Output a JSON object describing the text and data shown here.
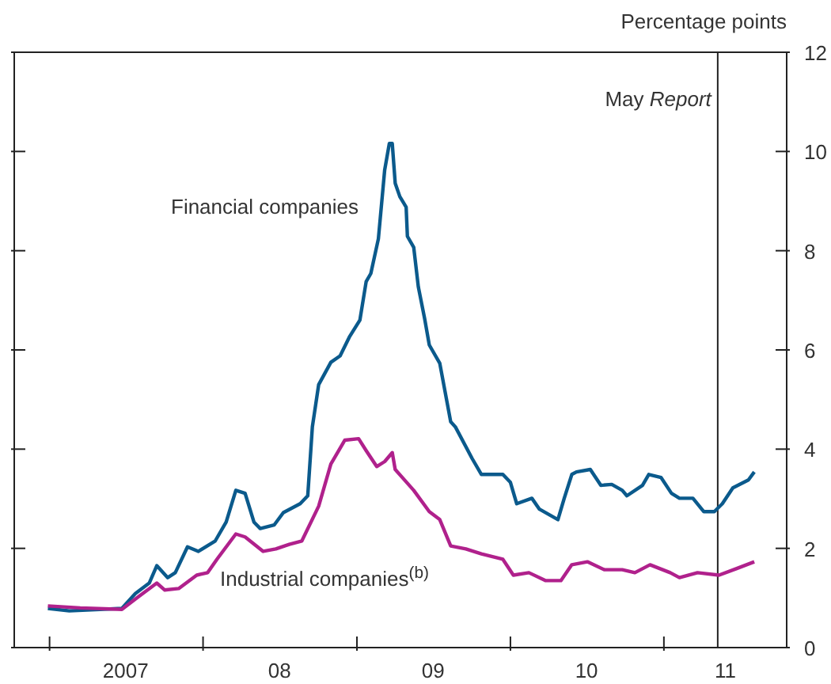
{
  "chart_data": {
    "type": "line",
    "ylabel": "Percentage points",
    "legend": false,
    "marker": "none",
    "line_style": "solid",
    "grid": false,
    "tick_labels": "xy",
    "xlim": [
      "2006-10-09",
      "2011-10-20"
    ],
    "xticks": [
      {
        "value": "2007-01-01",
        "label": null
      },
      {
        "value": "2007-07-01",
        "label": "2007"
      },
      {
        "value": "2008-01-01",
        "label": null
      },
      {
        "value": "2008-07-01",
        "label": "08"
      },
      {
        "value": "2009-01-01",
        "label": null
      },
      {
        "value": "2009-07-01",
        "label": "09"
      },
      {
        "value": "2010-01-01",
        "label": null
      },
      {
        "value": "2010-07-01",
        "label": "10"
      },
      {
        "value": "2011-01-01",
        "label": null
      },
      {
        "value": "2011-05-27",
        "label": "11"
      }
    ],
    "ylim": [
      0,
      12
    ],
    "yticks": [
      0,
      2,
      4,
      6,
      8,
      10,
      12
    ],
    "ref_lines": [
      {
        "axis": "x",
        "value": "2011-05-09",
        "label": "May Report",
        "color": "#222222"
      }
    ],
    "series": [
      {
        "name": "Financial companies",
        "color": "#0b5a8c",
        "x": [
          "2006-12-28",
          "2007-02-17",
          "2007-06-22",
          "2007-07-24",
          "2007-08-26",
          "2007-09-13",
          "2007-10-09",
          "2007-10-27",
          "2007-11-25",
          "2007-12-21",
          "2008-01-30",
          "2008-02-25",
          "2008-03-19",
          "2008-04-10",
          "2008-05-01",
          "2008-05-16",
          "2008-06-18",
          "2008-07-10",
          "2008-08-19",
          "2008-09-06",
          "2008-09-17",
          "2008-10-02",
          "2008-10-31",
          "2008-11-22",
          "2008-12-14",
          "2009-01-08",
          "2009-01-23",
          "2009-02-03",
          "2009-02-21",
          "2009-03-08",
          "2009-03-19",
          "2009-03-26",
          "2009-04-02",
          "2009-04-13",
          "2009-04-28",
          "2009-05-01",
          "2009-05-16",
          "2009-05-27",
          "2009-06-11",
          "2009-06-22",
          "2009-07-17",
          "2009-08-12",
          "2009-08-23",
          "2009-10-02",
          "2009-10-24",
          "2009-11-26",
          "2009-12-14",
          "2010-01-01",
          "2010-01-16",
          "2010-02-21",
          "2010-03-11",
          "2010-04-24",
          "2010-05-09",
          "2010-05-27",
          "2010-06-07",
          "2010-07-10",
          "2010-08-04",
          "2010-08-30",
          "2010-09-24",
          "2010-10-05",
          "2010-11-11",
          "2010-11-26",
          "2010-12-25",
          "2011-01-19",
          "2011-02-07",
          "2011-03-11",
          "2011-04-06",
          "2011-05-01",
          "2011-05-20",
          "2011-06-14",
          "2011-07-21",
          "2011-08-04"
        ],
        "values": [
          0.79,
          0.74,
          0.79,
          1.09,
          1.3,
          1.65,
          1.41,
          1.51,
          2.03,
          1.94,
          2.15,
          2.53,
          3.17,
          3.11,
          2.53,
          2.4,
          2.47,
          2.72,
          2.9,
          3.06,
          4.45,
          5.3,
          5.75,
          5.88,
          6.26,
          6.6,
          7.38,
          7.54,
          8.24,
          9.63,
          10.16,
          10.16,
          9.36,
          9.09,
          8.88,
          8.29,
          8.07,
          7.27,
          6.63,
          6.1,
          5.73,
          4.55,
          4.45,
          3.81,
          3.49,
          3.49,
          3.49,
          3.33,
          2.9,
          3.01,
          2.79,
          2.58,
          3.01,
          3.49,
          3.54,
          3.59,
          3.27,
          3.29,
          3.17,
          3.06,
          3.27,
          3.49,
          3.43,
          3.11,
          3.01,
          3.01,
          2.74,
          2.74,
          2.9,
          3.22,
          3.38,
          3.54
        ]
      },
      {
        "name": "Industrial companies$^{(b)}$",
        "color": "#b0218c",
        "x": [
          "2006-12-28",
          "2007-03-15",
          "2007-06-22",
          "2007-08-01",
          "2007-09-13",
          "2007-10-02",
          "2007-11-04",
          "2007-12-17",
          "2008-01-12",
          "2008-02-03",
          "2008-03-19",
          "2008-04-10",
          "2008-05-23",
          "2008-06-22",
          "2008-07-24",
          "2008-08-23",
          "2008-10-02",
          "2008-10-31",
          "2008-12-03",
          "2009-01-05",
          "2009-01-23",
          "2009-02-17",
          "2009-03-08",
          "2009-03-26",
          "2009-04-02",
          "2009-05-16",
          "2009-06-22",
          "2009-07-17",
          "2009-08-12",
          "2009-09-17",
          "2009-10-24",
          "2009-12-14",
          "2010-01-08",
          "2010-02-14",
          "2010-03-26",
          "2010-05-01",
          "2010-05-27",
          "2010-07-03",
          "2010-08-12",
          "2010-09-24",
          "2010-10-24",
          "2010-11-29",
          "2011-01-16",
          "2011-02-07",
          "2011-03-22",
          "2011-05-12",
          "2011-06-22",
          "2011-08-04"
        ],
        "values": [
          0.84,
          0.8,
          0.77,
          1.03,
          1.3,
          1.16,
          1.19,
          1.46,
          1.51,
          1.78,
          2.29,
          2.23,
          1.94,
          1.99,
          2.08,
          2.15,
          2.85,
          3.7,
          4.18,
          4.21,
          3.97,
          3.65,
          3.75,
          3.93,
          3.59,
          3.17,
          2.74,
          2.58,
          2.05,
          1.99,
          1.89,
          1.78,
          1.46,
          1.51,
          1.35,
          1.35,
          1.67,
          1.73,
          1.57,
          1.57,
          1.51,
          1.67,
          1.51,
          1.41,
          1.51,
          1.46,
          1.59,
          1.73
        ]
      }
    ]
  }
}
